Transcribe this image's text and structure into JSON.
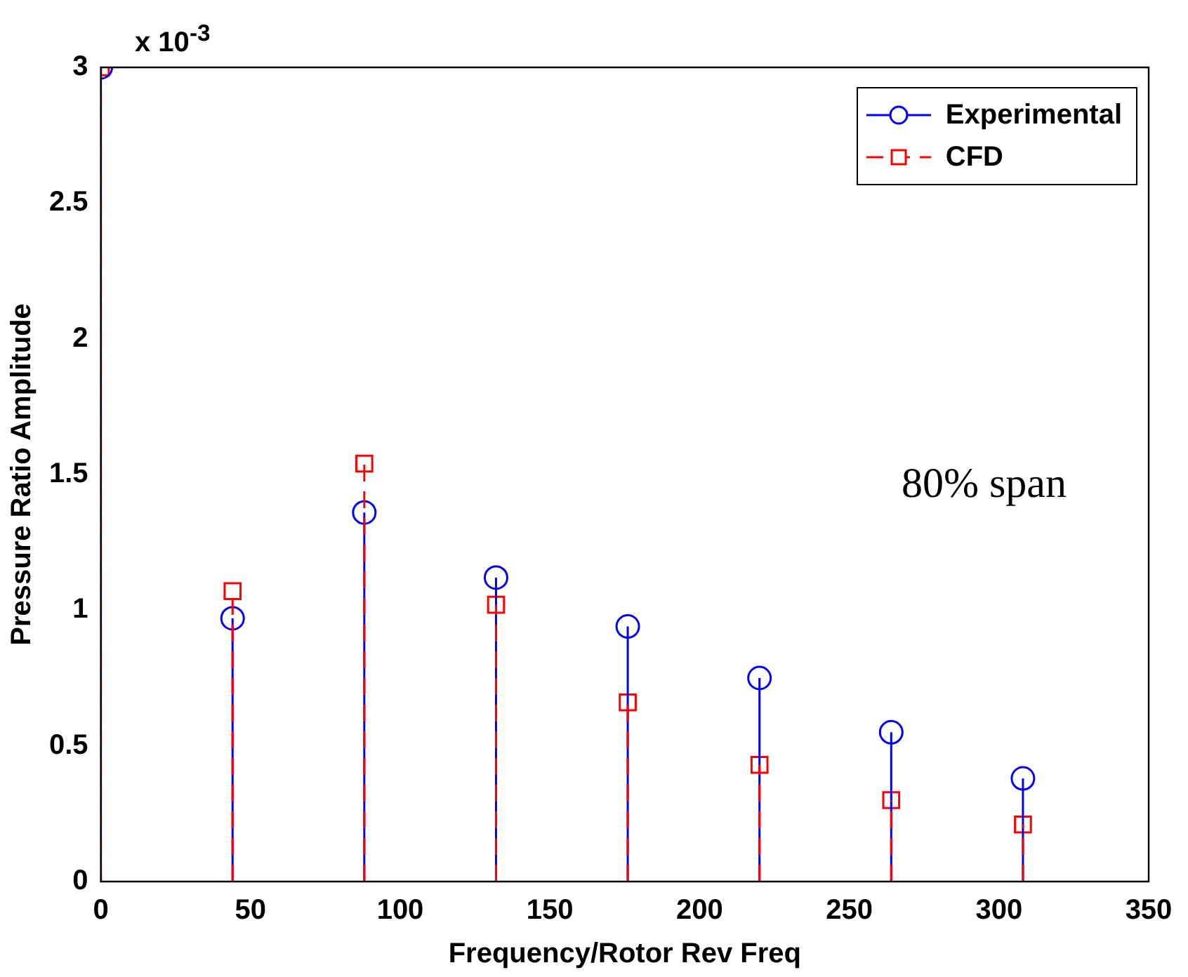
{
  "chart_data": {
    "type": "lollipop",
    "xlabel": "Frequency/Rotor Rev Freq",
    "ylabel": "Pressure Ratio Amplitude",
    "x": [
      0,
      44,
      88,
      132,
      176,
      220,
      264,
      308
    ],
    "series": [
      {
        "name": "Experimental",
        "color": "#0000ff",
        "marker": "circle",
        "line_style": "solid",
        "values": [
          3,
          0.97,
          1.36,
          1.12,
          0.94,
          0.75,
          0.55,
          0.38
        ]
      },
      {
        "name": "CFD",
        "color": "#ff0000",
        "marker": "square",
        "line_style": "dashed",
        "values": [
          3,
          1.07,
          1.54,
          1.02,
          0.66,
          0.43,
          0.3,
          0.21
        ]
      }
    ],
    "xlim": [
      0,
      350
    ],
    "xticks": [
      0,
      50,
      100,
      150,
      200,
      250,
      300,
      350
    ],
    "ylim": [
      0,
      3
    ],
    "yticks": [
      0,
      0.5,
      1,
      1.5,
      2,
      2.5,
      3
    ],
    "annotations": [
      "x 10$^{-3}$",
      "80% span"
    ],
    "legend": "top right",
    "grid": false
  }
}
